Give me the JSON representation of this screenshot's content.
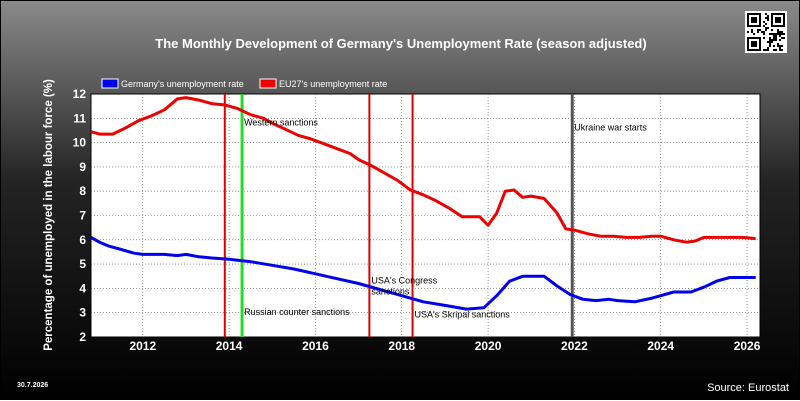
{
  "page": {
    "date_stamp": "30.7.2026",
    "source": "Source: Eurostat"
  },
  "chart_data": {
    "type": "line",
    "title": "The Monthly Development of Germany's Unemployment Rate (season adjusted)",
    "xlabel": "",
    "ylabel": "Percentage of unemployed in the labour force (%)",
    "xlim": [
      2010.8,
      2026.3
    ],
    "ylim": [
      2,
      12
    ],
    "x_ticks": [
      "2012",
      "2014",
      "2016",
      "2018",
      "2020",
      "2022",
      "2024",
      "2026"
    ],
    "y_ticks": [
      "2",
      "3",
      "4",
      "5",
      "6",
      "7",
      "8",
      "9",
      "10",
      "11",
      "12"
    ],
    "grid": true,
    "legend_position": "top-left",
    "series": [
      {
        "name": "Germany's unemployment rate",
        "color": "#0000ee",
        "points": [
          [
            2010.8,
            6.1
          ],
          [
            2011.0,
            5.9
          ],
          [
            2011.2,
            5.75
          ],
          [
            2011.5,
            5.6
          ],
          [
            2011.8,
            5.45
          ],
          [
            2012.0,
            5.4
          ],
          [
            2012.5,
            5.4
          ],
          [
            2012.8,
            5.35
          ],
          [
            2013.0,
            5.4
          ],
          [
            2013.3,
            5.3
          ],
          [
            2013.6,
            5.25
          ],
          [
            2014.0,
            5.2
          ],
          [
            2014.5,
            5.1
          ],
          [
            2015.0,
            4.95
          ],
          [
            2015.5,
            4.8
          ],
          [
            2016.0,
            4.6
          ],
          [
            2016.5,
            4.4
          ],
          [
            2017.0,
            4.2
          ],
          [
            2017.5,
            3.95
          ],
          [
            2018.0,
            3.7
          ],
          [
            2018.5,
            3.45
          ],
          [
            2019.0,
            3.3
          ],
          [
            2019.5,
            3.15
          ],
          [
            2019.9,
            3.2
          ],
          [
            2020.2,
            3.7
          ],
          [
            2020.5,
            4.3
          ],
          [
            2020.8,
            4.5
          ],
          [
            2021.0,
            4.5
          ],
          [
            2021.3,
            4.5
          ],
          [
            2021.6,
            4.1
          ],
          [
            2021.9,
            3.75
          ],
          [
            2022.2,
            3.55
          ],
          [
            2022.5,
            3.5
          ],
          [
            2022.8,
            3.55
          ],
          [
            2023.0,
            3.5
          ],
          [
            2023.4,
            3.45
          ],
          [
            2023.8,
            3.6
          ],
          [
            2024.0,
            3.7
          ],
          [
            2024.3,
            3.85
          ],
          [
            2024.7,
            3.85
          ],
          [
            2025.0,
            4.05
          ],
          [
            2025.3,
            4.3
          ],
          [
            2025.6,
            4.45
          ],
          [
            2025.9,
            4.45
          ],
          [
            2026.2,
            4.45
          ]
        ]
      },
      {
        "name": "EU27's unemployment rate",
        "color": "#ee0000",
        "points": [
          [
            2010.8,
            10.45
          ],
          [
            2011.0,
            10.35
          ],
          [
            2011.3,
            10.35
          ],
          [
            2011.6,
            10.6
          ],
          [
            2011.9,
            10.9
          ],
          [
            2012.2,
            11.1
          ],
          [
            2012.5,
            11.35
          ],
          [
            2012.8,
            11.8
          ],
          [
            2013.0,
            11.85
          ],
          [
            2013.3,
            11.75
          ],
          [
            2013.6,
            11.6
          ],
          [
            2013.9,
            11.55
          ],
          [
            2014.2,
            11.4
          ],
          [
            2014.5,
            11.15
          ],
          [
            2014.8,
            11.0
          ],
          [
            2015.0,
            10.8
          ],
          [
            2015.3,
            10.55
          ],
          [
            2015.6,
            10.3
          ],
          [
            2015.9,
            10.15
          ],
          [
            2016.2,
            9.95
          ],
          [
            2016.5,
            9.75
          ],
          [
            2016.8,
            9.55
          ],
          [
            2017.0,
            9.3
          ],
          [
            2017.3,
            9.05
          ],
          [
            2017.6,
            8.75
          ],
          [
            2017.9,
            8.45
          ],
          [
            2018.2,
            8.05
          ],
          [
            2018.5,
            7.85
          ],
          [
            2018.8,
            7.6
          ],
          [
            2019.1,
            7.3
          ],
          [
            2019.4,
            6.95
          ],
          [
            2019.8,
            6.95
          ],
          [
            2020.0,
            6.6
          ],
          [
            2020.2,
            7.1
          ],
          [
            2020.4,
            8.0
          ],
          [
            2020.6,
            8.05
          ],
          [
            2020.8,
            7.75
          ],
          [
            2021.0,
            7.8
          ],
          [
            2021.3,
            7.7
          ],
          [
            2021.6,
            7.1
          ],
          [
            2021.8,
            6.45
          ],
          [
            2022.0,
            6.4
          ],
          [
            2022.3,
            6.25
          ],
          [
            2022.6,
            6.15
          ],
          [
            2022.9,
            6.15
          ],
          [
            2023.2,
            6.1
          ],
          [
            2023.5,
            6.1
          ],
          [
            2023.8,
            6.15
          ],
          [
            2024.0,
            6.15
          ],
          [
            2024.3,
            6.0
          ],
          [
            2024.6,
            5.9
          ],
          [
            2024.8,
            5.95
          ],
          [
            2025.0,
            6.1
          ],
          [
            2025.3,
            6.1
          ],
          [
            2025.6,
            6.1
          ],
          [
            2025.9,
            6.1
          ],
          [
            2026.2,
            6.05
          ]
        ]
      }
    ],
    "events": [
      {
        "x": 2013.9,
        "label": "",
        "color": "#dd0000",
        "label_y": null
      },
      {
        "x": 2014.3,
        "label": "Western sanctions",
        "color": "#22dd22",
        "label_y": 10.7
      },
      {
        "x": 2014.3,
        "label": "Russian counter sanctions",
        "color": null,
        "label_y": 2.9
      },
      {
        "x": 2017.25,
        "label": "USA's Congress sanctions",
        "color": "#dd0000",
        "label_y": 4.2
      },
      {
        "x": 2018.25,
        "label": "USA's Skripal sanctions",
        "color": "#dd0000",
        "label_y": 2.8
      },
      {
        "x": 2021.95,
        "label": "Ukraine war starts",
        "color": "#555555",
        "label_y": 10.5
      }
    ]
  }
}
